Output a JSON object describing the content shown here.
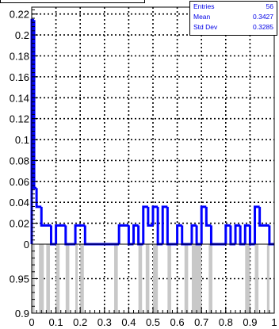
{
  "chart_data": [
    {
      "type": "bar",
      "title": "",
      "xlabel": "",
      "ylabel": "",
      "xlim": [
        0,
        1
      ],
      "ylim": [
        0,
        0.2266
      ],
      "grid": true,
      "line_color": "#0000ff",
      "bin_width": 0.02,
      "bins": [
        {
          "x0": 0.0,
          "x1": 0.01,
          "value": 0.2143
        },
        {
          "x0": 0.01,
          "x1": 0.02,
          "value": 0.0536
        },
        {
          "x0": 0.02,
          "x1": 0.04,
          "value": 0.0357
        },
        {
          "x0": 0.04,
          "x1": 0.08,
          "value": 0.0179
        },
        {
          "x0": 0.08,
          "x1": 0.1,
          "value": 0.0
        },
        {
          "x0": 0.1,
          "x1": 0.14,
          "value": 0.0179
        },
        {
          "x0": 0.14,
          "x1": 0.18,
          "value": 0.0
        },
        {
          "x0": 0.18,
          "x1": 0.22,
          "value": 0.0179
        },
        {
          "x0": 0.22,
          "x1": 0.36,
          "value": 0.0
        },
        {
          "x0": 0.36,
          "x1": 0.4,
          "value": 0.0179
        },
        {
          "x0": 0.4,
          "x1": 0.42,
          "value": 0.0
        },
        {
          "x0": 0.42,
          "x1": 0.44,
          "value": 0.0179
        },
        {
          "x0": 0.44,
          "x1": 0.46,
          "value": 0.0
        },
        {
          "x0": 0.46,
          "x1": 0.48,
          "value": 0.0357
        },
        {
          "x0": 0.48,
          "x1": 0.5,
          "value": 0.0179
        },
        {
          "x0": 0.5,
          "x1": 0.52,
          "value": 0.0357
        },
        {
          "x0": 0.52,
          "x1": 0.54,
          "value": 0.0
        },
        {
          "x0": 0.54,
          "x1": 0.56,
          "value": 0.0357
        },
        {
          "x0": 0.56,
          "x1": 0.6,
          "value": 0.0
        },
        {
          "x0": 0.6,
          "x1": 0.62,
          "value": 0.0179
        },
        {
          "x0": 0.62,
          "x1": 0.66,
          "value": 0.0
        },
        {
          "x0": 0.66,
          "x1": 0.68,
          "value": 0.0179
        },
        {
          "x0": 0.68,
          "x1": 0.7,
          "value": 0.0
        },
        {
          "x0": 0.7,
          "x1": 0.72,
          "value": 0.0357
        },
        {
          "x0": 0.72,
          "x1": 0.74,
          "value": 0.0179
        },
        {
          "x0": 0.74,
          "x1": 0.8,
          "value": 0.0
        },
        {
          "x0": 0.8,
          "x1": 0.82,
          "value": 0.0179
        },
        {
          "x0": 0.82,
          "x1": 0.84,
          "value": 0.0
        },
        {
          "x0": 0.84,
          "x1": 0.86,
          "value": 0.0179
        },
        {
          "x0": 0.86,
          "x1": 0.88,
          "value": 0.0
        },
        {
          "x0": 0.88,
          "x1": 0.9,
          "value": 0.0179
        },
        {
          "x0": 0.9,
          "x1": 0.92,
          "value": 0.0
        },
        {
          "x0": 0.92,
          "x1": 0.94,
          "value": 0.0357
        },
        {
          "x0": 0.94,
          "x1": 0.98,
          "value": 0.0179
        },
        {
          "x0": 0.98,
          "x1": 1.0,
          "value": 0.0
        }
      ],
      "x_ticks": [
        "0",
        "0.1",
        "0.2",
        "0.3",
        "0.4",
        "0.5",
        "0.6",
        "0.7",
        "0.8",
        "0.9",
        "1"
      ],
      "y_ticks": [
        "0",
        "0.02",
        "0.04",
        "0.06",
        "0.08",
        "0.1",
        "0.12",
        "0.14",
        "0.16",
        "0.18",
        "0.2",
        "0.22"
      ],
      "stats": {
        "rows": [
          {
            "label": "Entries",
            "value": "56"
          },
          {
            "label": "Mean",
            "value": "0.3427"
          },
          {
            "label": "Std Dev",
            "value": "0.3285"
          }
        ]
      }
    },
    {
      "type": "bar",
      "title": "",
      "xlabel": "",
      "ylabel": "",
      "xlim": [
        0,
        1
      ],
      "ylim": [
        0.9,
        1.0
      ],
      "grid": true,
      "fill_color": "#c8c8c8",
      "bars": [
        {
          "x0": 0.0,
          "x1": 0.012,
          "y": 1.0
        },
        {
          "x0": 0.03,
          "x1": 0.05,
          "y": 1.0
        },
        {
          "x0": 0.06,
          "x1": 0.075,
          "y": 1.0
        },
        {
          "x0": 0.1,
          "x1": 0.115,
          "y": 1.0
        },
        {
          "x0": 0.14,
          "x1": 0.155,
          "y": 1.0
        },
        {
          "x0": 0.18,
          "x1": 0.19,
          "y": 1.0
        },
        {
          "x0": 0.2,
          "x1": 0.215,
          "y": 1.0
        },
        {
          "x0": 0.34,
          "x1": 0.355,
          "y": 1.0
        },
        {
          "x0": 0.44,
          "x1": 0.455,
          "y": 1.0
        },
        {
          "x0": 0.47,
          "x1": 0.485,
          "y": 1.0
        },
        {
          "x0": 0.5,
          "x1": 0.52,
          "y": 1.0
        },
        {
          "x0": 0.56,
          "x1": 0.575,
          "y": 1.0
        },
        {
          "x0": 0.63,
          "x1": 0.645,
          "y": 1.0
        },
        {
          "x0": 0.66,
          "x1": 0.7,
          "y": 1.0
        },
        {
          "x0": 0.73,
          "x1": 0.745,
          "y": 1.0
        },
        {
          "x0": 0.88,
          "x1": 0.9,
          "y": 1.0
        },
        {
          "x0": 0.92,
          "x1": 0.935,
          "y": 1.0
        },
        {
          "x0": 0.97,
          "x1": 0.98,
          "y": 1.0
        }
      ],
      "x_ticks": [
        "0",
        "0.1",
        "0.2",
        "0.3",
        "0.4",
        "0.5",
        "0.6",
        "0.7",
        "0.8",
        "0.9",
        "1"
      ],
      "y_ticks": [
        "0.9",
        "0.95",
        "1"
      ]
    }
  ]
}
